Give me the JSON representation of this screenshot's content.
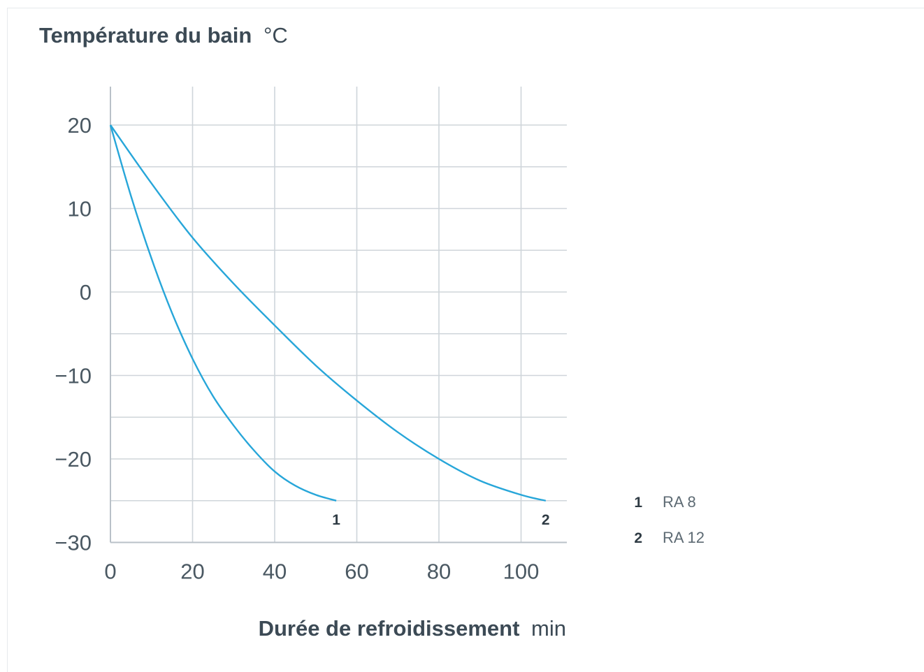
{
  "chart_data": {
    "type": "line",
    "ylabel": "Température du bain",
    "ylabel_unit": "°C",
    "xlabel": "Durée de refroidissement",
    "xlabel_unit": "min",
    "xlim": [
      0,
      110
    ],
    "ylim": [
      -30,
      25
    ],
    "x_ticks": [
      0,
      20,
      40,
      60,
      80,
      100
    ],
    "y_ticks": [
      20,
      10,
      0,
      -10,
      -20,
      -30
    ],
    "x_gridlines": [
      0,
      20,
      40,
      60,
      80,
      100
    ],
    "y_gridlines": [
      20,
      15,
      10,
      5,
      0,
      -5,
      -10,
      -15,
      -20,
      -25
    ],
    "grid": true,
    "legend_position": "right",
    "series": [
      {
        "number": "1",
        "name": "RA 8",
        "end_label": "1",
        "color": "#27a6d9",
        "x": [
          0,
          5,
          10,
          15,
          20,
          25,
          30,
          35,
          40,
          45,
          50,
          55
        ],
        "y": [
          20,
          11.5,
          4,
          -2.5,
          -8,
          -12.5,
          -16,
          -19,
          -21.5,
          -23.2,
          -24.3,
          -25
        ]
      },
      {
        "number": "2",
        "name": "RA 12",
        "end_label": "2",
        "color": "#27a6d9",
        "x": [
          0,
          10,
          20,
          30,
          40,
          50,
          60,
          70,
          80,
          90,
          100,
          106
        ],
        "y": [
          20,
          13,
          6.5,
          1,
          -4,
          -8.8,
          -13,
          -16.8,
          -20,
          -22.6,
          -24.3,
          -25
        ]
      }
    ]
  }
}
